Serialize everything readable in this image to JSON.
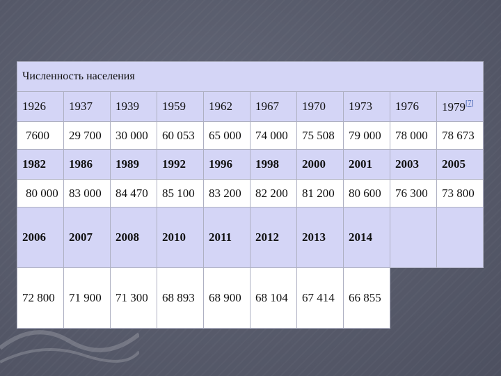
{
  "title": "Численность населения",
  "rows": [
    {
      "years": [
        "1926",
        "1937",
        "1939",
        "1959",
        "1962",
        "1967",
        "1970",
        "1973",
        "1976",
        "1979"
      ],
      "footnote_ref": "[7]",
      "values": [
        "7600",
        "29 700",
        "30 000",
        "60 053",
        "65 000",
        "74 000",
        "75 508",
        "79 000",
        "78 000",
        "78 673"
      ]
    },
    {
      "years": [
        "1982",
        "1986",
        "1989",
        "1992",
        "1996",
        "1998",
        "2000",
        "2001",
        "2003",
        "2005"
      ],
      "values": [
        "80 000",
        "83 000",
        "84 470",
        "85 100",
        "83 200",
        "82 200",
        "81 200",
        "80 600",
        "76 300",
        "73 800"
      ]
    },
    {
      "years": [
        "2006",
        "2007",
        "2008",
        "2010",
        "2011",
        "2012",
        "2013",
        "2014"
      ],
      "values": [
        "72 800",
        "71 900",
        "71 300",
        "68 893",
        "68 900",
        "68 104",
        "67 414",
        "66 855"
      ]
    }
  ]
}
